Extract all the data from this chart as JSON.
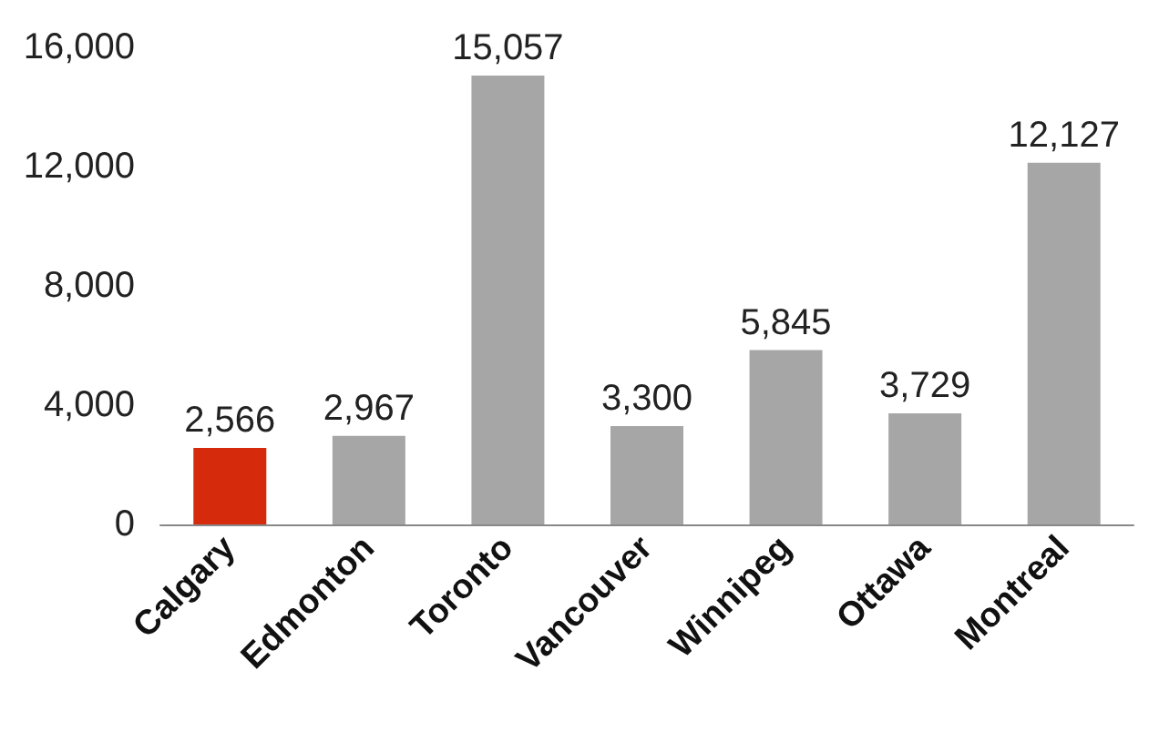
{
  "chart_data": {
    "type": "bar",
    "categories": [
      "Calgary",
      "Edmonton",
      "Toronto",
      "Vancouver",
      "Winnipeg",
      "Ottawa",
      "Montreal"
    ],
    "values": [
      2566,
      2967,
      15057,
      3300,
      5845,
      3729,
      12127
    ],
    "colors": [
      "#d62a0c",
      "#a6a6a6",
      "#a6a6a6",
      "#a6a6a6",
      "#a6a6a6",
      "#a6a6a6",
      "#a6a6a6"
    ],
    "ylim": [
      0,
      16000
    ],
    "yticks": [
      {
        "value": 0,
        "label": "0"
      },
      {
        "value": 4000,
        "label": "4,000"
      },
      {
        "value": 8000,
        "label": "8,000"
      },
      {
        "value": 12000,
        "label": "12,000"
      },
      {
        "value": 16000,
        "label": "16,000"
      }
    ],
    "value_labels": [
      "2,566",
      "2,967",
      "15,057",
      "3,300",
      "5,845",
      "3,729",
      "12,127"
    ],
    "grid": false
  }
}
